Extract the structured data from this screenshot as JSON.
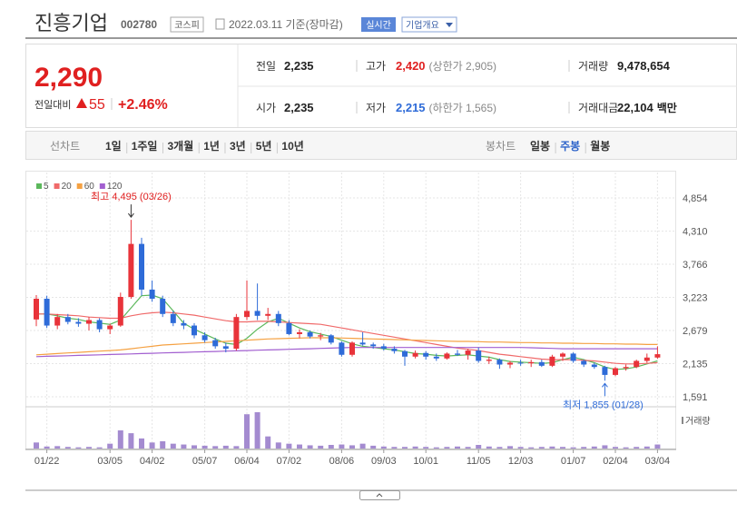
{
  "header": {
    "name": "진흥기업",
    "code": "002780",
    "market": "코스피",
    "date": "2022.03.11 기준(장마감)",
    "realtime": "실시간",
    "overview": "기업개요"
  },
  "quote": {
    "price": "2,290",
    "change_label": "전일대비",
    "change": "55",
    "change_rate": "+2.46%",
    "rows": [
      [
        {
          "label": "전일",
          "value": "2,235"
        },
        {
          "label": "고가",
          "value": "2,420",
          "note": "(상한가 2,905)"
        },
        {
          "label": "거래량",
          "value": "9,478,654"
        }
      ],
      [
        {
          "label": "시가",
          "value": "2,235"
        },
        {
          "label": "저가",
          "value": "2,215",
          "note": "(하한가 1,565)"
        },
        {
          "label": "거래대금",
          "value": "22,104",
          "unit": "백만"
        }
      ]
    ]
  },
  "tabs": {
    "line_label": "선차트",
    "line": [
      "1일",
      "1주일",
      "3개월",
      "1년",
      "3년",
      "5년",
      "10년"
    ],
    "candle_label": "봉차트",
    "candle": [
      "일봉",
      "주봉",
      "월봉"
    ]
  },
  "chart_data": {
    "type": "candlestick",
    "categories": [
      null,
      "01/22",
      null,
      null,
      null,
      null,
      null,
      "03/05",
      null,
      null,
      null,
      "04/02",
      null,
      null,
      null,
      null,
      "05/07",
      null,
      null,
      null,
      "06/04",
      null,
      null,
      null,
      "07/02",
      null,
      null,
      null,
      null,
      "08/06",
      null,
      null,
      null,
      "09/03",
      null,
      null,
      null,
      "10/01",
      null,
      null,
      null,
      null,
      "11/05",
      null,
      null,
      null,
      "12/03",
      null,
      null,
      null,
      null,
      "01/07",
      null,
      null,
      null,
      "02/04",
      null,
      null,
      null,
      "03/04"
    ],
    "open": [
      2860,
      3200,
      2760,
      2900,
      2820,
      2790,
      2850,
      2700,
      2760,
      3230,
      4100,
      3350,
      3200,
      2950,
      2800,
      2760,
      2600,
      2520,
      2420,
      2380,
      2900,
      3000,
      2920,
      2950,
      2800,
      2620,
      2650,
      2580,
      2600,
      2480,
      2280,
      2480,
      2450,
      2420,
      2380,
      2340,
      2250,
      2310,
      2250,
      2220,
      2300,
      2280,
      2350,
      2180,
      2200,
      2120,
      2150,
      2140,
      2160,
      2100,
      2250,
      2300,
      2180,
      2120,
      2080,
      1950,
      2060,
      2080,
      2180,
      2235
    ],
    "high": [
      3260,
      3250,
      2950,
      2950,
      2880,
      2900,
      2880,
      2790,
      3300,
      4495,
      4200,
      3500,
      3250,
      3000,
      2850,
      2800,
      2650,
      2560,
      2480,
      2950,
      3500,
      3450,
      3050,
      3000,
      2850,
      2700,
      2680,
      2640,
      2620,
      2500,
      2500,
      2650,
      2480,
      2460,
      2420,
      2360,
      2350,
      2340,
      2300,
      2320,
      2360,
      2380,
      2400,
      2250,
      2220,
      2180,
      2200,
      2200,
      2200,
      2280,
      2320,
      2320,
      2200,
      2150,
      2100,
      2080,
      2120,
      2200,
      2300,
      2420
    ],
    "low": [
      2750,
      2720,
      2700,
      2780,
      2740,
      2680,
      2650,
      2620,
      2740,
      3200,
      3250,
      3150,
      2900,
      2750,
      2700,
      2550,
      2480,
      2380,
      2320,
      2350,
      2850,
      2850,
      2850,
      2750,
      2600,
      2550,
      2550,
      2520,
      2450,
      2250,
      2250,
      2430,
      2380,
      2350,
      2300,
      2100,
      2220,
      2200,
      2180,
      2200,
      2260,
      2200,
      2150,
      2130,
      2050,
      2060,
      2100,
      2080,
      2080,
      2080,
      2180,
      2150,
      2080,
      2050,
      1855,
      1930,
      2020,
      2060,
      2150,
      2215
    ],
    "close": [
      3200,
      2760,
      2900,
      2820,
      2790,
      2850,
      2700,
      2760,
      3230,
      4100,
      3350,
      3200,
      2950,
      2800,
      2760,
      2600,
      2520,
      2420,
      2380,
      2900,
      3000,
      2920,
      2950,
      2800,
      2620,
      2650,
      2580,
      2600,
      2480,
      2280,
      2480,
      2450,
      2420,
      2380,
      2340,
      2250,
      2310,
      2250,
      2220,
      2300,
      2280,
      2350,
      2180,
      2200,
      2120,
      2150,
      2140,
      2160,
      2100,
      2250,
      2300,
      2180,
      2120,
      2080,
      1950,
      2060,
      2080,
      2180,
      2235,
      2290
    ],
    "up_color": "#e8333a",
    "down_color": "#2e6bd8",
    "moving_averages": [
      {
        "name": "5",
        "color": "#5cb85c",
        "values": [
          2950,
          2950,
          2920,
          2880,
          2860,
          2820,
          2800,
          2780,
          2850,
          3050,
          3250,
          3260,
          3200,
          3000,
          2800,
          2700,
          2620,
          2540,
          2470,
          2450,
          2550,
          2700,
          2820,
          2880,
          2800,
          2720,
          2660,
          2620,
          2580,
          2520,
          2460,
          2420,
          2400,
          2380,
          2360,
          2330,
          2300,
          2290,
          2270,
          2260,
          2270,
          2280,
          2260,
          2240,
          2200,
          2170,
          2160,
          2150,
          2140,
          2150,
          2200,
          2240,
          2200,
          2150,
          2080,
          2040,
          2050,
          2080,
          2130,
          2180
        ]
      },
      {
        "name": "20",
        "color": "#f06a6a",
        "values": [
          2950,
          2950,
          2940,
          2930,
          2920,
          2900,
          2890,
          2880,
          2880,
          2920,
          2950,
          2970,
          2980,
          2970,
          2950,
          2930,
          2900,
          2870,
          2840,
          2820,
          2820,
          2830,
          2830,
          2820,
          2810,
          2800,
          2790,
          2780,
          2750,
          2720,
          2690,
          2660,
          2630,
          2600,
          2570,
          2540,
          2510,
          2480,
          2450,
          2420,
          2390,
          2370,
          2350,
          2320,
          2290,
          2270,
          2250,
          2230,
          2210,
          2200,
          2200,
          2200,
          2190,
          2180,
          2160,
          2140,
          2130,
          2130,
          2140,
          2150
        ]
      },
      {
        "name": "60",
        "color": "#f5a142",
        "values": [
          2280,
          2290,
          2300,
          2310,
          2320,
          2330,
          2340,
          2350,
          2360,
          2380,
          2400,
          2420,
          2440,
          2450,
          2460,
          2470,
          2480,
          2490,
          2500,
          2510,
          2520,
          2530,
          2540,
          2545,
          2550,
          2555,
          2560,
          2560,
          2560,
          2555,
          2550,
          2545,
          2540,
          2535,
          2530,
          2525,
          2520,
          2515,
          2510,
          2505,
          2500,
          2500,
          2495,
          2490,
          2490,
          2485,
          2480,
          2480,
          2475,
          2475,
          2470,
          2470,
          2465,
          2465,
          2460,
          2460,
          2455,
          2455,
          2450,
          2450
        ]
      },
      {
        "name": "120",
        "color": "#a25fd0",
        "values": [
          2250,
          2255,
          2260,
          2265,
          2270,
          2275,
          2280,
          2285,
          2290,
          2295,
          2300,
          2305,
          2310,
          2315,
          2320,
          2325,
          2330,
          2335,
          2340,
          2345,
          2350,
          2355,
          2360,
          2365,
          2370,
          2375,
          2380,
          2385,
          2390,
          2395,
          2400,
          2400,
          2400,
          2400,
          2400,
          2400,
          2400,
          2400,
          2400,
          2400,
          2400,
          2400,
          2400,
          2400,
          2400,
          2400,
          2400,
          2395,
          2390,
          2385,
          2380,
          2380,
          2380,
          2380,
          2380,
          2380,
          2380,
          2380,
          2380,
          2380
        ]
      }
    ],
    "volume": {
      "name": "거래량",
      "color": "#a48bd0",
      "values": [
        1500000,
        500000,
        600000,
        400000,
        300000,
        400000,
        300000,
        1200000,
        4500000,
        3800000,
        2500000,
        1500000,
        1800000,
        1200000,
        1000000,
        800000,
        700000,
        600000,
        700000,
        600000,
        8500000,
        9000000,
        3000000,
        1500000,
        1200000,
        1000000,
        800000,
        700000,
        900000,
        1000000,
        800000,
        1200000,
        700000,
        500000,
        400000,
        400000,
        500000,
        400000,
        300000,
        400000,
        500000,
        400000,
        900000,
        500000,
        400000,
        600000,
        400000,
        300000,
        400000,
        500000,
        400000,
        300000,
        400000,
        500000,
        800000,
        400000,
        300000,
        400000,
        500000,
        1000000
      ]
    },
    "ylim": [
      1442,
      5048
    ],
    "yticks": [
      {
        "value": 4854,
        "label": "4,854"
      },
      {
        "value": 4310,
        "label": "4,310"
      },
      {
        "value": 3766,
        "label": "3,766"
      },
      {
        "value": 3223,
        "label": "3,223"
      },
      {
        "value": 2679,
        "label": "2,679"
      },
      {
        "value": 2135,
        "label": "2,135"
      },
      {
        "value": 1591,
        "label": "1,591"
      }
    ],
    "grid": true,
    "high_label": "최고 4,495 (03/26)",
    "low_label": "최저 1,855 (01/28)"
  }
}
